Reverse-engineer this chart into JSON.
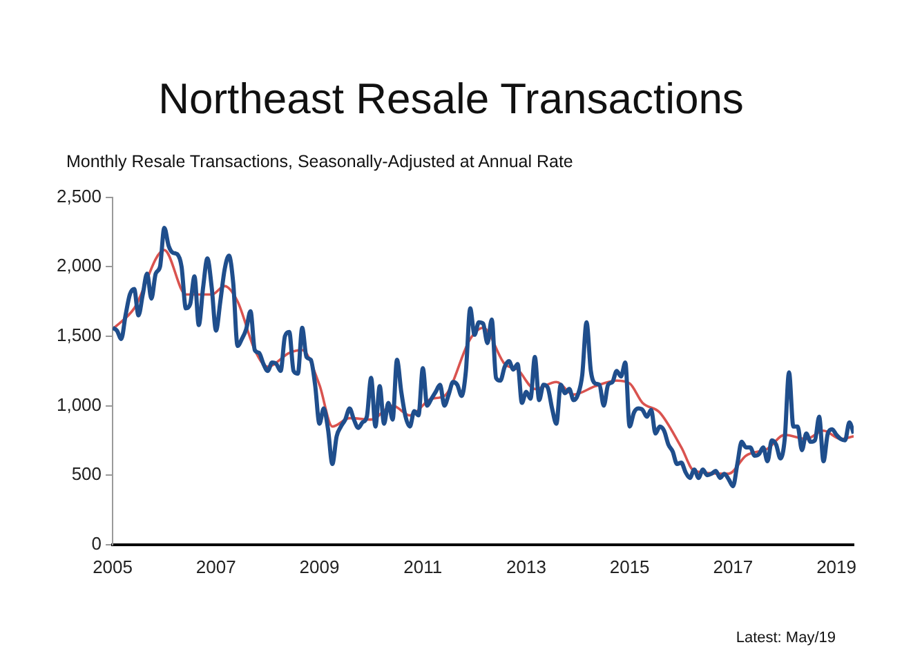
{
  "chart_data": {
    "type": "line",
    "title": "Northeast Resale Transactions",
    "subtitle": "Monthly Resale Transactions, Seasonally-Adjusted at Annual Rate",
    "annotations": [
      "Latest: May/19"
    ],
    "x": [
      "2005-01",
      "2005-02",
      "2005-03",
      "2005-04",
      "2005-05",
      "2005-06",
      "2005-07",
      "2005-08",
      "2005-09",
      "2005-10",
      "2005-11",
      "2005-12",
      "2006-01",
      "2006-02",
      "2006-03",
      "2006-04",
      "2006-05",
      "2006-06",
      "2006-07",
      "2006-08",
      "2006-09",
      "2006-10",
      "2006-11",
      "2006-12",
      "2007-01",
      "2007-02",
      "2007-03",
      "2007-04",
      "2007-05",
      "2007-06",
      "2007-07",
      "2007-08",
      "2007-09",
      "2007-10",
      "2007-11",
      "2007-12",
      "2008-01",
      "2008-02",
      "2008-03",
      "2008-04",
      "2008-05",
      "2008-06",
      "2008-07",
      "2008-08",
      "2008-09",
      "2008-10",
      "2008-11",
      "2008-12",
      "2009-01",
      "2009-02",
      "2009-03",
      "2009-04",
      "2009-05",
      "2009-06",
      "2009-07",
      "2009-08",
      "2009-09",
      "2009-10",
      "2009-11",
      "2009-12",
      "2010-01",
      "2010-02",
      "2010-03",
      "2010-04",
      "2010-05",
      "2010-06",
      "2010-07",
      "2010-08",
      "2010-09",
      "2010-10",
      "2010-11",
      "2010-12",
      "2011-01",
      "2011-02",
      "2011-03",
      "2011-04",
      "2011-05",
      "2011-06",
      "2011-07",
      "2011-08",
      "2011-09",
      "2011-10",
      "2011-11",
      "2011-12",
      "2012-01",
      "2012-02",
      "2012-03",
      "2012-04",
      "2012-05",
      "2012-06",
      "2012-07",
      "2012-08",
      "2012-09",
      "2012-10",
      "2012-11",
      "2012-12",
      "2013-01",
      "2013-02",
      "2013-03",
      "2013-04",
      "2013-05",
      "2013-06",
      "2013-07",
      "2013-08",
      "2013-09",
      "2013-10",
      "2013-11",
      "2013-12",
      "2014-01",
      "2014-02",
      "2014-03",
      "2014-04",
      "2014-05",
      "2014-06",
      "2014-07",
      "2014-08",
      "2014-09",
      "2014-10",
      "2014-11",
      "2014-12",
      "2015-01",
      "2015-02",
      "2015-03",
      "2015-04",
      "2015-05",
      "2015-06",
      "2015-07",
      "2015-08",
      "2015-09",
      "2015-10",
      "2015-11",
      "2015-12",
      "2016-01",
      "2016-02",
      "2016-03",
      "2016-04",
      "2016-05",
      "2016-06",
      "2016-07",
      "2016-08",
      "2016-09",
      "2016-10",
      "2016-11",
      "2016-12",
      "2017-01",
      "2017-02",
      "2017-03",
      "2017-04",
      "2017-05",
      "2017-06",
      "2017-07",
      "2017-08",
      "2017-09",
      "2017-10",
      "2017-11",
      "2017-12",
      "2018-01",
      "2018-02",
      "2018-03",
      "2018-04",
      "2018-05",
      "2018-06",
      "2018-07",
      "2018-08",
      "2018-09",
      "2018-10",
      "2018-11",
      "2018-12",
      "2019-01",
      "2019-02",
      "2019-03",
      "2019-04",
      "2019-05"
    ],
    "series": [
      {
        "color": "#1f4e8c",
        "values": [
          1560,
          1540,
          1480,
          1650,
          1800,
          1840,
          1650,
          1800,
          1950,
          1770,
          1950,
          2000,
          2280,
          2150,
          2100,
          2090,
          2000,
          1700,
          1730,
          1930,
          1580,
          1850,
          2060,
          1850,
          1540,
          1750,
          1980,
          2080,
          1880,
          1430,
          1480,
          1550,
          1680,
          1400,
          1380,
          1300,
          1250,
          1310,
          1300,
          1250,
          1500,
          1530,
          1250,
          1230,
          1560,
          1350,
          1330,
          1150,
          870,
          980,
          830,
          580,
          780,
          850,
          900,
          980,
          900,
          840,
          880,
          920,
          1200,
          850,
          1140,
          870,
          1020,
          900,
          1330,
          1100,
          920,
          850,
          960,
          930,
          1270,
          1000,
          1050,
          1100,
          1150,
          1000,
          1080,
          1170,
          1150,
          1070,
          1250,
          1700,
          1510,
          1600,
          1590,
          1450,
          1620,
          1200,
          1180,
          1280,
          1320,
          1260,
          1300,
          1020,
          1100,
          1050,
          1350,
          1040,
          1150,
          1130,
          980,
          870,
          1150,
          1090,
          1120,
          1040,
          1080,
          1220,
          1600,
          1250,
          1160,
          1150,
          1000,
          1150,
          1170,
          1250,
          1210,
          1310,
          850,
          950,
          980,
          970,
          920,
          970,
          800,
          850,
          820,
          720,
          670,
          580,
          590,
          520,
          480,
          540,
          480,
          540,
          500,
          510,
          530,
          480,
          510,
          470,
          420,
          580,
          740,
          700,
          700,
          640,
          650,
          700,
          600,
          750,
          720,
          620,
          760,
          1240,
          850,
          850,
          680,
          800,
          740,
          750,
          920,
          600,
          800,
          830,
          790,
          760,
          750,
          880,
          800
        ]
      },
      {
        "color": "#d9534f",
        "x": [
          "2005-01",
          "2005-06",
          "2006-01",
          "2006-06",
          "2006-12",
          "2007-03",
          "2007-06",
          "2007-10",
          "2008-01",
          "2008-06",
          "2008-09",
          "2009-01",
          "2009-04",
          "2009-08",
          "2010-01",
          "2010-06",
          "2010-10",
          "2011-03",
          "2011-06",
          "2011-12",
          "2012-03",
          "2012-08",
          "2012-11",
          "2013-03",
          "2013-08",
          "2013-12",
          "2014-05",
          "2014-10",
          "2015-01",
          "2015-04",
          "2015-08",
          "2016-01",
          "2016-04",
          "2016-12",
          "2017-04",
          "2017-09",
          "2018-01",
          "2018-06",
          "2018-10",
          "2019-02",
          "2019-05"
        ],
        "values": [
          1550,
          1700,
          2120,
          1800,
          1800,
          1860,
          1750,
          1400,
          1280,
          1380,
          1400,
          1150,
          850,
          910,
          900,
          1000,
          930,
          1050,
          1070,
          1480,
          1560,
          1300,
          1260,
          1120,
          1170,
          1080,
          1140,
          1180,
          1160,
          1020,
          950,
          700,
          530,
          510,
          640,
          690,
          790,
          760,
          820,
          760,
          780
        ]
      }
    ],
    "xlim": [
      "2005-01",
      "2019-05"
    ],
    "xticks": [
      "2005",
      "2007",
      "2009",
      "2011",
      "2013",
      "2015",
      "2017",
      "2019"
    ],
    "ylim": [
      0,
      2500
    ],
    "yticks": [
      {
        "value": 0,
        "label": "0"
      },
      {
        "value": 500,
        "label": "500"
      },
      {
        "value": 1000,
        "label": "1,000"
      },
      {
        "value": 1500,
        "label": "1,500"
      },
      {
        "value": 2000,
        "label": "2,000"
      },
      {
        "value": 2500,
        "label": "2,500"
      }
    ],
    "grid": false,
    "legend": false,
    "marker": "none",
    "line_style": "solid"
  }
}
